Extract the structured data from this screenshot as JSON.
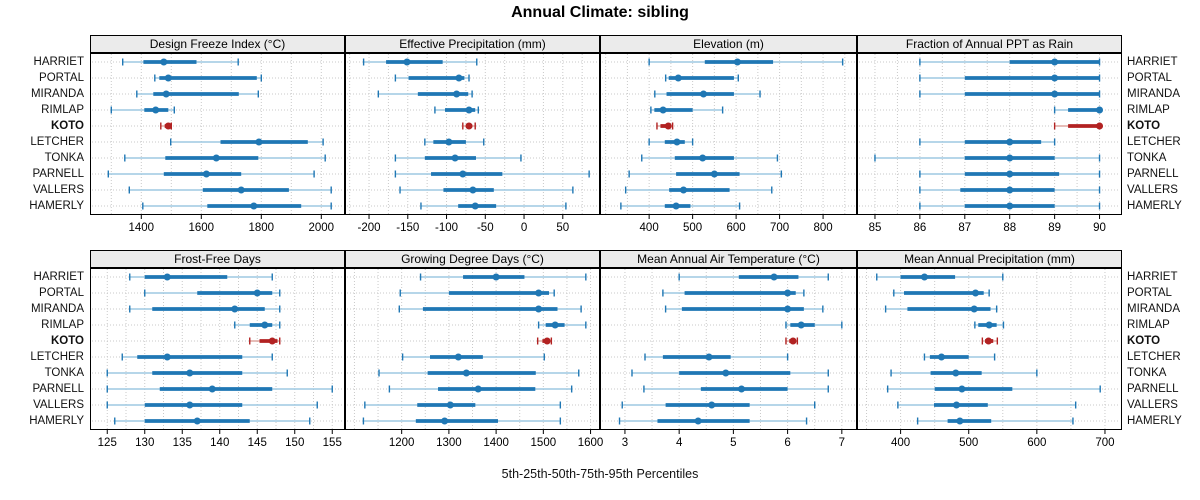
{
  "title": "Annual Climate: sibling",
  "caption": "5th-25th-50th-75th-95th Percentiles",
  "stations": [
    "HARRIET",
    "PORTAL",
    "MIRANDA",
    "RIMLAP",
    "KOTO",
    "LETCHER",
    "TONKA",
    "PARNELL",
    "VALLERS",
    "HAMERLY"
  ],
  "highlight_station": "KOTO",
  "percentiles": [
    "5th",
    "25th",
    "50th",
    "75th",
    "95th"
  ],
  "colors": {
    "primary": "#1f77b4",
    "primary_light": "#9ec9e2",
    "highlight": "#b22222",
    "highlight_light": "#dda7a0",
    "strip_bg": "#ebebeb",
    "grid": "#c9c9c9",
    "border": "#000000"
  },
  "chart_data": [
    {
      "type": "dotplot-percentiles",
      "key": "design-freeze-index",
      "title": "Design Freeze Index (°C)",
      "ticks": [
        1400,
        1600,
        1800,
        2000
      ],
      "xlim": [
        1229,
        2079
      ],
      "values": [
        [
          1338,
          1407,
          1475,
          1584,
          1723
        ],
        [
          1445,
          1460,
          1490,
          1785,
          1800
        ],
        [
          1385,
          1440,
          1483,
          1725,
          1790
        ],
        [
          1300,
          1410,
          1448,
          1490,
          1510
        ],
        [
          1465,
          1478,
          1490,
          1495,
          1500
        ],
        [
          1498,
          1664,
          1792,
          1955,
          2006
        ],
        [
          1345,
          1480,
          1650,
          1790,
          2013
        ],
        [
          1290,
          1475,
          1617,
          1733,
          1976
        ],
        [
          1360,
          1605,
          1733,
          1892,
          2033
        ],
        [
          1405,
          1620,
          1775,
          1933,
          2033
        ]
      ]
    },
    {
      "type": "dotplot-percentiles",
      "key": "effective-precipitation",
      "title": "Effective Precipitation (mm)",
      "ticks": [
        -200,
        -150,
        -100,
        -50,
        0,
        50
      ],
      "xlim": [
        -231,
        98
      ],
      "values": [
        [
          -207,
          -178,
          -151,
          -105,
          -61
        ],
        [
          -166,
          -149,
          -84,
          -77,
          -71
        ],
        [
          -188,
          -137,
          -87,
          -72,
          -67
        ],
        [
          -115,
          -102,
          -71,
          -63,
          -59
        ],
        [
          -79,
          -75,
          -71,
          -67,
          -63
        ],
        [
          -128,
          -117,
          -97,
          -75,
          -52
        ],
        [
          -166,
          -128,
          -89,
          -62,
          -4
        ],
        [
          -166,
          -120,
          -79,
          -28,
          84
        ],
        [
          -160,
          -104,
          -66,
          -39,
          63
        ],
        [
          -133,
          -85,
          -63,
          -36,
          54
        ]
      ]
    },
    {
      "type": "dotplot-percentiles",
      "key": "elevation",
      "title": "Elevation (m)",
      "ticks": [
        400,
        500,
        600,
        700,
        800
      ],
      "xlim": [
        287,
        878
      ],
      "values": [
        [
          400,
          528,
          603,
          685,
          845
        ],
        [
          438,
          445,
          467,
          595,
          605
        ],
        [
          413,
          440,
          525,
          595,
          655
        ],
        [
          404,
          412,
          432,
          500,
          569
        ],
        [
          418,
          426,
          444,
          448,
          454
        ],
        [
          400,
          436,
          464,
          482,
          500
        ],
        [
          383,
          459,
          523,
          595,
          695
        ],
        [
          354,
          462,
          550,
          608,
          704
        ],
        [
          346,
          446,
          479,
          585,
          682
        ],
        [
          335,
          436,
          462,
          495,
          608
        ]
      ]
    },
    {
      "type": "dotplot-percentiles",
      "key": "fraction-ppt-rain",
      "title": "Fraction of Annual PPT as Rain",
      "ticks": [
        85,
        86,
        87,
        88,
        89,
        90
      ],
      "xlim": [
        84.6,
        90.5
      ],
      "values": [
        [
          86,
          88,
          89,
          90,
          90
        ],
        [
          86,
          87,
          89,
          90,
          90
        ],
        [
          86,
          87,
          89,
          90,
          90
        ],
        [
          89,
          89.3,
          90,
          90,
          90
        ],
        [
          89,
          89.3,
          90,
          90,
          90
        ],
        [
          86,
          87,
          88,
          88.7,
          89
        ],
        [
          85,
          87,
          88,
          89,
          90
        ],
        [
          86,
          87,
          88,
          89.1,
          90
        ],
        [
          86,
          86.9,
          88,
          89,
          90
        ],
        [
          86,
          87,
          88,
          89,
          90
        ]
      ]
    },
    {
      "type": "dotplot-percentiles",
      "key": "frost-free-days",
      "title": "Frost-Free Days",
      "ticks": [
        125,
        130,
        135,
        140,
        145,
        150,
        155
      ],
      "xlim": [
        122.7,
        156.7
      ],
      "values": [
        [
          128,
          130,
          133,
          141,
          147
        ],
        [
          130,
          137,
          145,
          147,
          148
        ],
        [
          128,
          131,
          142,
          146,
          148
        ],
        [
          142,
          144,
          146,
          147,
          148
        ],
        [
          144,
          145.3,
          147,
          147.7,
          148
        ],
        [
          127,
          129,
          133,
          143,
          147
        ],
        [
          125,
          131,
          136,
          143,
          149
        ],
        [
          125,
          132,
          139,
          147,
          155
        ],
        [
          125,
          130,
          136,
          143,
          153
        ],
        [
          126,
          130,
          137,
          144,
          152
        ]
      ]
    },
    {
      "type": "dotplot-percentiles",
      "key": "growing-degree-days",
      "title": "Growing Degree Days (°C)",
      "ticks": [
        1200,
        1300,
        1400,
        1500,
        1600
      ],
      "xlim": [
        1080,
        1620
      ],
      "values": [
        [
          1240,
          1330,
          1400,
          1460,
          1590
        ],
        [
          1197,
          1300,
          1490,
          1512,
          1523
        ],
        [
          1195,
          1245,
          1490,
          1530,
          1580
        ],
        [
          1490,
          1505,
          1525,
          1545,
          1590
        ],
        [
          1488,
          1498,
          1508,
          1513,
          1517
        ],
        [
          1202,
          1260,
          1320,
          1372,
          1502
        ],
        [
          1152,
          1255,
          1337,
          1484,
          1575
        ],
        [
          1174,
          1277,
          1362,
          1483,
          1560
        ],
        [
          1122,
          1233,
          1303,
          1356,
          1536
        ],
        [
          1119,
          1230,
          1291,
          1404,
          1536
        ]
      ]
    },
    {
      "type": "dotplot-percentiles",
      "key": "mean-annual-air-temperature",
      "title": "Mean Annual Air Temperature (°C)",
      "ticks": [
        3,
        4,
        5,
        6,
        7
      ],
      "xlim": [
        2.54,
        7.28
      ],
      "values": [
        [
          4.0,
          5.1,
          5.75,
          6.2,
          6.75
        ],
        [
          3.7,
          4.1,
          6.0,
          6.15,
          6.3
        ],
        [
          3.75,
          4.05,
          6.0,
          6.3,
          6.65
        ],
        [
          5.97,
          6.05,
          6.25,
          6.5,
          7.0
        ],
        [
          5.97,
          6.03,
          6.1,
          6.15,
          6.18
        ],
        [
          3.37,
          3.7,
          4.55,
          4.95,
          6.0
        ],
        [
          3.13,
          4.0,
          4.86,
          6.05,
          6.75
        ],
        [
          3.35,
          4.4,
          5.15,
          6.0,
          6.75
        ],
        [
          2.95,
          3.75,
          4.6,
          5.3,
          6.5
        ],
        [
          2.9,
          3.6,
          4.35,
          5.3,
          6.35
        ]
      ]
    },
    {
      "type": "dotplot-percentiles",
      "key": "mean-annual-precipitation",
      "title": "Mean Annual Precipitation (mm)",
      "ticks": [
        400,
        500,
        600,
        700
      ],
      "xlim": [
        336,
        725
      ],
      "values": [
        [
          365,
          400,
          435,
          480,
          550
        ],
        [
          390,
          405,
          510,
          522,
          530
        ],
        [
          378,
          410,
          508,
          532,
          541
        ],
        [
          509,
          514,
          530,
          541,
          551
        ],
        [
          520,
          524,
          529,
          536,
          542
        ],
        [
          435,
          443,
          460,
          500,
          538
        ],
        [
          386,
          444,
          481,
          519,
          600
        ],
        [
          381,
          450,
          490,
          564,
          693
        ],
        [
          396,
          449,
          482,
          528,
          657
        ],
        [
          425,
          469,
          487,
          533,
          653
        ]
      ]
    }
  ]
}
